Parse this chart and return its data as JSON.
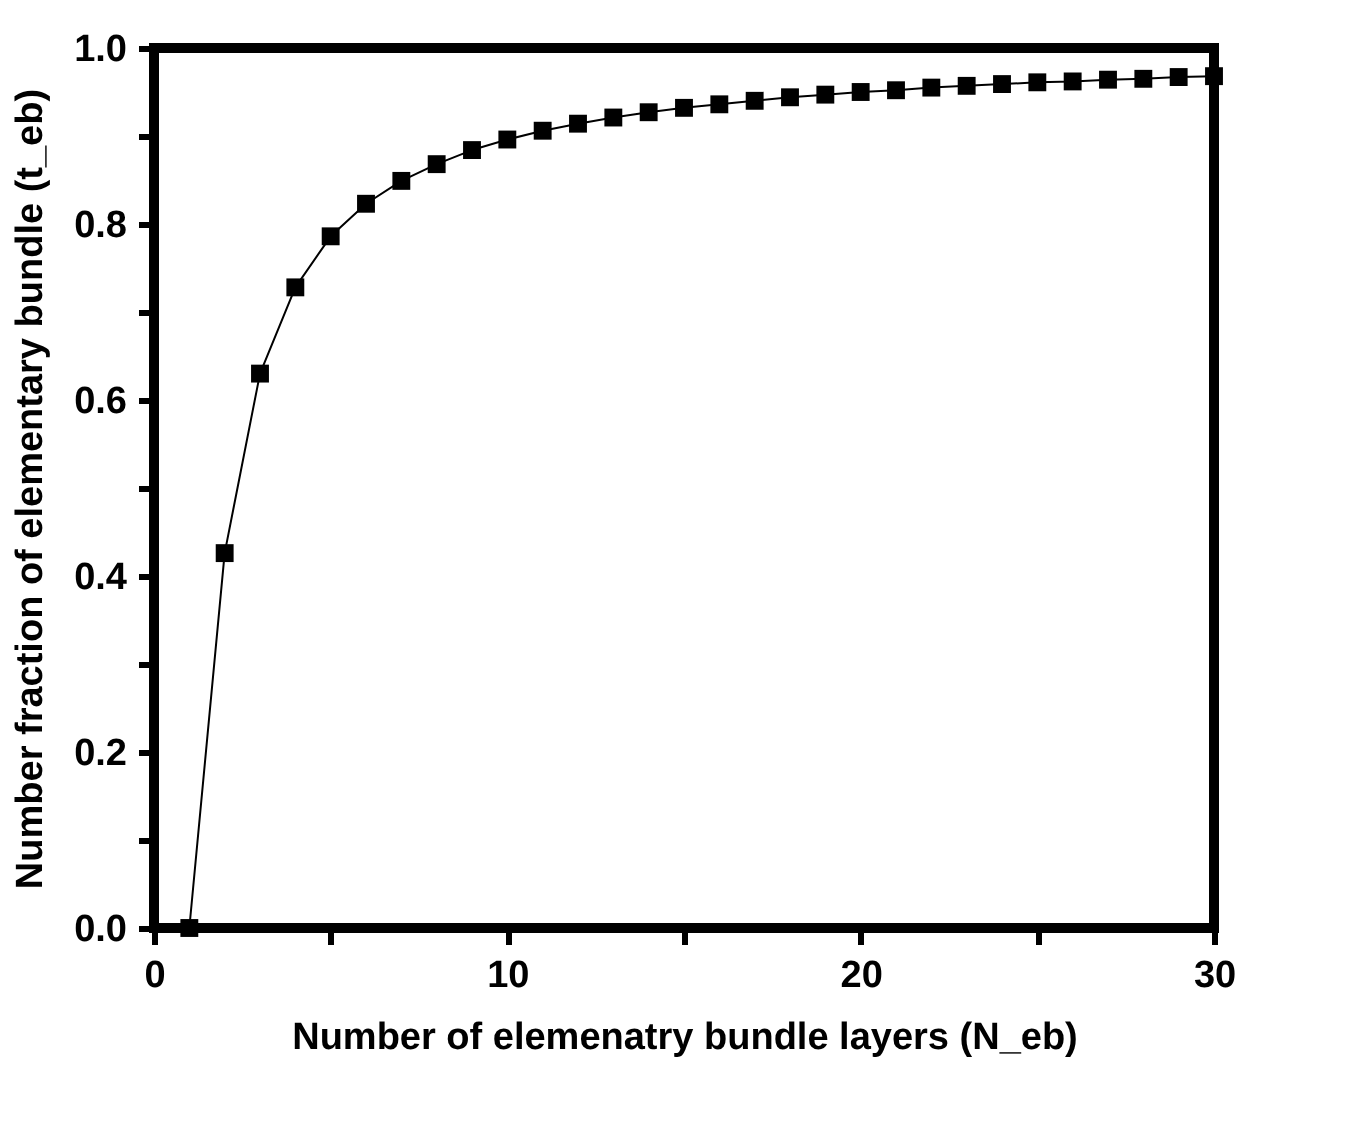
{
  "chart_data": {
    "type": "line",
    "xlabel": "Number of elemenatry bundle layers (N_eb)",
    "ylabel": "Number fraction of elementary bundle (t_eb)",
    "x": [
      1,
      2,
      3,
      4,
      5,
      6,
      7,
      8,
      9,
      10,
      11,
      12,
      13,
      14,
      15,
      16,
      17,
      18,
      19,
      20,
      21,
      22,
      23,
      24,
      25,
      26,
      27,
      28,
      29,
      30
    ],
    "series": [
      {
        "color": "#000000",
        "values": [
          0,
          0.426,
          0.63,
          0.728,
          0.786,
          0.823,
          0.849,
          0.868,
          0.884,
          0.896,
          0.906,
          0.914,
          0.921,
          0.927,
          0.932,
          0.936,
          0.94,
          0.944,
          0.947,
          0.95,
          0.952,
          0.955,
          0.957,
          0.959,
          0.961,
          0.962,
          0.964,
          0.965,
          0.967,
          0.968
        ]
      }
    ],
    "xlim": [
      0,
      30
    ],
    "ylim": [
      0,
      1.0
    ],
    "xticks": [
      0,
      {
        "value": 5,
        "label": null
      },
      10,
      {
        "value": 15,
        "label": null
      },
      20,
      {
        "value": 25,
        "label": null
      },
      30
    ],
    "yticks": [
      {
        "value": 0,
        "label": "0.0"
      },
      {
        "value": 0.1,
        "label": null
      },
      0.2,
      {
        "value": 0.3,
        "label": null
      },
      0.4,
      {
        "value": 0.5,
        "label": null
      },
      0.6,
      {
        "value": 0.7,
        "label": null
      },
      0.8,
      {
        "value": 0.9,
        "label": null
      },
      {
        "value": 1.0,
        "label": "1.0"
      }
    ],
    "marker": "square",
    "line_style": "solid",
    "grid": false
  }
}
